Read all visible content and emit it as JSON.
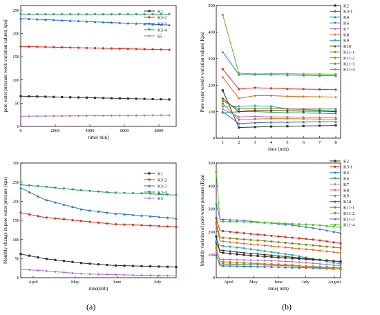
{
  "captions": [
    "(a)",
    "(b)"
  ],
  "chart_data": [
    {
      "type": "line",
      "xlabel": "time(  min)",
      "ylabel": "pore water pressure week variation values(  kpa)",
      "xlim": [
        0,
        9000
      ],
      "ylim": [
        0,
        260
      ],
      "xticks": [
        "0",
        "2000",
        "4000",
        "6000",
        "8000"
      ],
      "yticks": [
        "0",
        "50",
        "100",
        "150",
        "200",
        "250"
      ],
      "legend": "top-right",
      "series": [
        {
          "name": "K1",
          "color": "#333333",
          "marker": "square",
          "x": [
            0,
            8600
          ],
          "values": [
            65,
            58
          ]
        },
        {
          "name": "K3-2",
          "color": "#e8281e",
          "marker": "circle",
          "x": [
            0,
            8600
          ],
          "values": [
            172,
            165
          ]
        },
        {
          "name": "K3-3",
          "color": "#1f6fe0",
          "marker": "triangle",
          "x": [
            0,
            8600
          ],
          "values": [
            232,
            218
          ]
        },
        {
          "name": "K3-4",
          "color": "#1e9b50",
          "marker": "triangle-down",
          "x": [
            0,
            8600
          ],
          "values": [
            241,
            241
          ]
        },
        {
          "name": "k5",
          "color": "#b06cdc",
          "marker": "diamond",
          "x": [
            0,
            8600
          ],
          "values": [
            22,
            24
          ]
        }
      ]
    },
    {
      "type": "line",
      "xlabel": "time(mth)",
      "ylabel": "Monthly change in pore water pressure (kpa)",
      "xlim": [
        0,
        1
      ],
      "ylim": [
        0,
        300
      ],
      "xticks": [
        "April",
        "May",
        "June",
        "July"
      ],
      "yticks": [
        "0",
        "50",
        "100",
        "150",
        "200",
        "250",
        "300"
      ],
      "legend": "top-right",
      "series": [
        {
          "name": "K1",
          "color": "#333333",
          "marker": "square",
          "x": [
            0,
            0.15,
            0.4,
            0.6,
            0.8,
            1
          ],
          "values": [
            62,
            50,
            38,
            32,
            30,
            28
          ]
        },
        {
          "name": "K3-2",
          "color": "#e8281e",
          "marker": "circle",
          "x": [
            0,
            0.15,
            0.4,
            0.6,
            0.8,
            1
          ],
          "values": [
            170,
            158,
            148,
            140,
            137,
            133
          ]
        },
        {
          "name": "K3-3",
          "color": "#1f6fe0",
          "marker": "triangle",
          "x": [
            0,
            0.15,
            0.4,
            0.6,
            0.8,
            1
          ],
          "values": [
            235,
            205,
            178,
            168,
            162,
            155
          ]
        },
        {
          "name": "K3-4",
          "color": "#1e9b50",
          "marker": "triangle-down",
          "x": [
            0,
            0.15,
            0.4,
            0.6,
            0.8,
            1
          ],
          "values": [
            243,
            238,
            228,
            222,
            220,
            216
          ]
        },
        {
          "name": "K5",
          "color": "#b06cdc",
          "marker": "diamond",
          "x": [
            0,
            0.15,
            0.4,
            0.6,
            0.8,
            1
          ],
          "values": [
            22,
            18,
            10,
            8,
            6,
            5
          ]
        }
      ]
    },
    {
      "type": "line",
      "xlabel": "time (min)",
      "ylabel": "Pore water weekly variation values(  Kpa)",
      "xlim": [
        0.6,
        8.3
      ],
      "ylim": [
        0,
        500
      ],
      "xticks": [
        "1",
        "2",
        "3",
        "4",
        "5",
        "6",
        "7",
        "8"
      ],
      "yticks": [
        "0",
        "100",
        "200",
        "300",
        "400",
        "500"
      ],
      "legend": "right",
      "x": [
        1,
        2,
        3,
        4,
        5,
        6,
        7,
        8
      ],
      "series": [
        {
          "name": "K2",
          "color": "#333333",
          "marker": "square",
          "values": [
            180,
            40,
            42,
            44,
            45,
            46,
            47,
            48
          ]
        },
        {
          "name": "K3-1",
          "color": "#e8281e",
          "marker": "circle",
          "values": [
            260,
            185,
            190,
            188,
            186,
            185,
            184,
            183
          ]
        },
        {
          "name": "K4",
          "color": "#1f6fe0",
          "marker": "triangle",
          "values": [
            100,
            55,
            58,
            60,
            60,
            61,
            62,
            62
          ]
        },
        {
          "name": "K6",
          "color": "#1e9b50",
          "marker": "triangle-down",
          "values": [
            95,
            100,
            100,
            98,
            96,
            95,
            94,
            92
          ]
        },
        {
          "name": "K7",
          "color": "#b06cdc",
          "marker": "diamond",
          "values": [
            110,
            80,
            82,
            80,
            80,
            79,
            78,
            78
          ]
        },
        {
          "name": "K8",
          "color": "#e06a1a",
          "marker": "diamond",
          "values": [
            230,
            150,
            160,
            160,
            158,
            157,
            156,
            155
          ]
        },
        {
          "name": "K9",
          "color": "#19b0c0",
          "marker": "circle",
          "values": [
            120,
            120,
            122,
            120,
            110,
            108,
            105,
            103
          ]
        },
        {
          "name": "K10",
          "color": "#5a2e12",
          "marker": "star",
          "values": [
            150,
            100,
            105,
            105,
            103,
            102,
            102,
            100
          ]
        },
        {
          "name": "K11-1",
          "color": "#7a8a1c",
          "marker": "circle",
          "values": [
            140,
            110,
            112,
            112,
            110,
            110,
            110,
            110
          ]
        },
        {
          "name": "K11-2",
          "color": "#f07000",
          "marker": "square",
          "values": [
            130,
            70,
            72,
            74,
            74,
            73,
            72,
            72
          ]
        },
        {
          "name": "K11-3",
          "color": "#3a78d8",
          "marker": "triangle",
          "values": [
            325,
            240,
            240,
            240,
            238,
            237,
            236,
            235
          ]
        },
        {
          "name": "K11-4",
          "color": "#55c020",
          "marker": "circle",
          "values": [
            465,
            245,
            242,
            243,
            243,
            242,
            242,
            241
          ]
        }
      ]
    },
    {
      "type": "line",
      "xlabel": "time(  mth)",
      "ylabel": "Monthly variation of pore water pressure (Kpa)",
      "xlim": [
        0,
        1
      ],
      "ylim": [
        0,
        500
      ],
      "xticks": [
        "April",
        "May",
        "June",
        "July",
        "August"
      ],
      "yticks": [
        "0",
        "100",
        "200",
        "300",
        "400",
        "500"
      ],
      "legend": "right",
      "x": [
        0.0,
        0.03,
        0.2,
        0.4,
        0.6,
        0.8,
        1.0
      ],
      "series": [
        {
          "name": "K2",
          "color": "#333333",
          "marker": "square",
          "values": [
            180,
            110,
            100,
            92,
            85,
            78,
            70
          ]
        },
        {
          "name": "K3-1",
          "color": "#e8281e",
          "marker": "circle",
          "values": [
            260,
            205,
            195,
            185,
            175,
            165,
            150
          ]
        },
        {
          "name": "K4",
          "color": "#1f6fe0",
          "marker": "triangle",
          "values": [
            100,
            52,
            50,
            48,
            45,
            42,
            38
          ]
        },
        {
          "name": "K6",
          "color": "#1e9b50",
          "marker": "triangle-down",
          "values": [
            95,
            60,
            58,
            55,
            52,
            48,
            42
          ]
        },
        {
          "name": "K7",
          "color": "#b06cdc",
          "marker": "diamond",
          "values": [
            110,
            80,
            78,
            75,
            70,
            62,
            52
          ]
        },
        {
          "name": "K8",
          "color": "#e06a1a",
          "marker": "diamond",
          "values": [
            230,
            160,
            150,
            140,
            130,
            120,
            108
          ]
        },
        {
          "name": "K9",
          "color": "#19b0c0",
          "marker": "circle",
          "values": [
            160,
            140,
            130,
            115,
            100,
            80,
            60
          ]
        },
        {
          "name": "K10",
          "color": "#5a2e12",
          "marker": "star",
          "values": [
            150,
            120,
            110,
            100,
            90,
            80,
            70
          ]
        },
        {
          "name": "K11-1",
          "color": "#7a8a1c",
          "marker": "circle",
          "values": [
            240,
            175,
            168,
            160,
            150,
            140,
            130
          ]
        },
        {
          "name": "K11-2",
          "color": "#f07000",
          "marker": "square",
          "values": [
            130,
            70,
            65,
            60,
            55,
            45,
            38
          ]
        },
        {
          "name": "K11-3",
          "color": "#3a78d8",
          "marker": "triangle",
          "values": [
            325,
            255,
            250,
            240,
            230,
            215,
            195
          ]
        },
        {
          "name": "K11-4",
          "color": "#55c020",
          "marker": "circle",
          "values": [
            462,
            245,
            244,
            240,
            235,
            230,
            220
          ]
        }
      ]
    }
  ]
}
